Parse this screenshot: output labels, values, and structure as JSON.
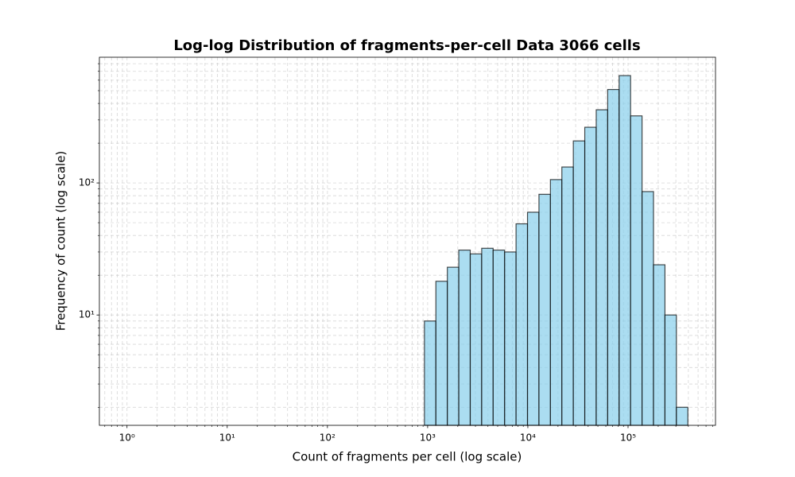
{
  "chart_data": {
    "type": "histogram",
    "title": "Log-log Distribution of fragments-per-cell Data 3066 cells",
    "xlabel": "Count of fragments per cell (log scale)",
    "ylabel": "Frequency of count (log scale)",
    "bins": [
      929,
      1209,
      1573,
      2046,
      2662,
      3463,
      4506,
      5864,
      7628,
      9924,
      12912,
      16800,
      21855,
      28440,
      37000,
      48140,
      62640,
      81510,
      106000,
      137950,
      179500,
      233500,
      303800,
      395300
    ],
    "counts": [
      9,
      18,
      23,
      31,
      29,
      32,
      31,
      30,
      49,
      60,
      82,
      106,
      132,
      208,
      264,
      358,
      510,
      650,
      322,
      86,
      24,
      10,
      2
    ],
    "color": "#87ceeb",
    "edgecolor": "#000000",
    "xscale": "log",
    "yscale": "log",
    "xlim": [
      0.53,
      746000
    ],
    "ylim": [
      1.46,
      895
    ],
    "xticks": [
      {
        "value": 1,
        "label": "10⁰"
      },
      {
        "value": 10,
        "label": "10¹"
      },
      {
        "value": 100,
        "label": "10²"
      },
      {
        "value": 1000,
        "label": "10³"
      },
      {
        "value": 10000,
        "label": "10⁴"
      },
      {
        "value": 100000,
        "label": "10⁵"
      }
    ],
    "yticks": [
      {
        "value": 10,
        "label": "10¹"
      },
      {
        "value": 100,
        "label": "10²"
      }
    ],
    "xminorticks": [
      0.6,
      0.7,
      0.8,
      0.9,
      2,
      3,
      4,
      5,
      6,
      7,
      8,
      9,
      20,
      30,
      40,
      50,
      60,
      70,
      80,
      90,
      200,
      300,
      400,
      500,
      600,
      700,
      800,
      900,
      2000,
      3000,
      4000,
      5000,
      6000,
      7000,
      8000,
      9000,
      20000,
      30000,
      40000,
      50000,
      60000,
      70000,
      80000,
      90000,
      200000,
      300000,
      400000,
      500000,
      600000,
      700000
    ],
    "yminorticks": [
      2,
      3,
      4,
      5,
      6,
      7,
      8,
      9,
      20,
      30,
      40,
      50,
      60,
      70,
      80,
      90,
      200,
      300,
      400,
      500,
      600,
      700,
      800
    ],
    "grid": true
  }
}
